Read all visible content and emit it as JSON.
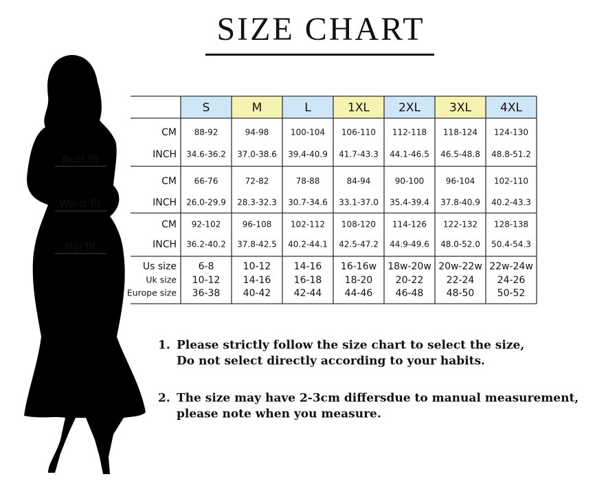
{
  "header": {
    "title": "SIZE CHART"
  },
  "table": {
    "columns": [
      "S",
      "M",
      "L",
      "1XL",
      "2XL",
      "3XL",
      "4XL"
    ],
    "groups": [
      {
        "label": "Bust fit",
        "rows": [
          {
            "unit": "CM",
            "values": [
              "88-92",
              "94-98",
              "100-104",
              "106-110",
              "112-118",
              "118-124",
              "124-130"
            ]
          },
          {
            "unit": "INCH",
            "values": [
              "34.6-36.2",
              "37.0-38.6",
              "39.4-40.9",
              "41.7-43.3",
              "44.1-46.5",
              "46.5-48.8",
              "48.8-51.2"
            ]
          }
        ]
      },
      {
        "label": "Waist fit",
        "rows": [
          {
            "unit": "CM",
            "values": [
              "66-76",
              "72-82",
              "78-88",
              "84-94",
              "90-100",
              "96-104",
              "102-110"
            ]
          },
          {
            "unit": "INCH",
            "values": [
              "26.0-29.9",
              "28.3-32.3",
              "30.7-34.6",
              "33.1-37.0",
              "35.4-39.4",
              "37.8-40.9",
              "40.2-43.3"
            ]
          }
        ]
      },
      {
        "label": "Hip fit",
        "rows": [
          {
            "unit": "CM",
            "values": [
              "92-102",
              "96-108",
              "102-112",
              "108-120",
              "114-126",
              "122-132",
              "128-138"
            ]
          },
          {
            "unit": "INCH",
            "values": [
              "36.2-40.2",
              "37.8-42.5",
              "40.2-44.1",
              "42.5-47.2",
              "44.9-49.6",
              "48.0-52.0",
              "50.4-54.3"
            ]
          }
        ]
      },
      {
        "rows": [
          {
            "unit": "Us size",
            "values": [
              "6-8",
              "10-12",
              "14-16",
              "16-16w",
              "18w-20w",
              "20w-22w",
              "22w-24w"
            ]
          },
          {
            "unit": "Uk size",
            "values": [
              "10-12",
              "14-16",
              "16-18",
              "18-20",
              "20-22",
              "22-24",
              "24-26"
            ]
          },
          {
            "unit": "Europe size",
            "values": [
              "36-38",
              "40-42",
              "42-44",
              "44-46",
              "46-48",
              "48-50",
              "50-52"
            ]
          }
        ]
      }
    ]
  },
  "notes": [
    {
      "number": "1.",
      "lines": [
        "Please strictly follow the size chart to select the size,",
        "Do not select directly according to your habits."
      ]
    },
    {
      "number": "2.",
      "lines": [
        "The size may have 2-3cm differsdue to manual measurement,",
        "please note when you measure."
      ]
    }
  ]
}
